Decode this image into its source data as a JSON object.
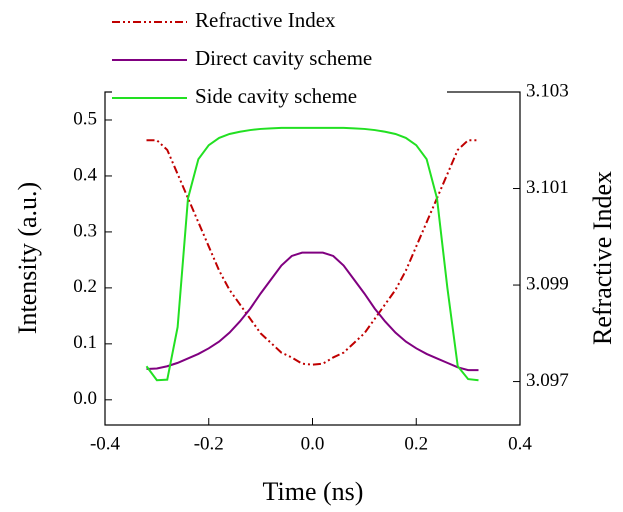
{
  "chart_data": {
    "type": "line",
    "xlabel": "Time (ns)",
    "ylabel": "Intensity (a.u.)",
    "y2label": "Refractive Index",
    "x": [
      -0.32,
      -0.3,
      -0.28,
      -0.26,
      -0.24,
      -0.22,
      -0.2,
      -0.18,
      -0.16,
      -0.14,
      -0.12,
      -0.1,
      -0.08,
      -0.06,
      -0.04,
      -0.02,
      0,
      0.02,
      0.04,
      0.06,
      0.08,
      0.1,
      0.12,
      0.14,
      0.16,
      0.18,
      0.2,
      0.22,
      0.24,
      0.26,
      0.28,
      0.3,
      0.32
    ],
    "series": [
      {
        "name": "Refractive Index",
        "color": "#c00000",
        "dash": "dash-dot-dot",
        "axis": "y2",
        "values": [
          3.102,
          3.102,
          3.1018,
          3.1013,
          3.1008,
          3.1003,
          3.0998,
          3.0993,
          3.0989,
          3.0986,
          3.0983,
          3.098,
          3.0978,
          3.0976,
          3.0975,
          3.09737,
          3.09735,
          3.09737,
          3.0975,
          3.0976,
          3.0978,
          3.098,
          3.0983,
          3.0986,
          3.0989,
          3.0993,
          3.0998,
          3.1003,
          3.1008,
          3.1013,
          3.1018,
          3.102,
          3.102
        ]
      },
      {
        "name": "Direct cavity scheme",
        "color": "#800080",
        "dash": "solid",
        "values": [
          0.055,
          0.056,
          0.06,
          0.066,
          0.074,
          0.082,
          0.092,
          0.104,
          0.12,
          0.14,
          0.163,
          0.19,
          0.215,
          0.24,
          0.257,
          0.263,
          0.263,
          0.263,
          0.257,
          0.24,
          0.215,
          0.19,
          0.163,
          0.14,
          0.12,
          0.104,
          0.092,
          0.082,
          0.074,
          0.066,
          0.058,
          0.053,
          0.053
        ]
      },
      {
        "name": "Side cavity scheme",
        "color": "#22e022",
        "dash": "solid",
        "values": [
          0.06,
          0.035,
          0.036,
          0.13,
          0.36,
          0.43,
          0.455,
          0.468,
          0.475,
          0.479,
          0.482,
          0.484,
          0.485,
          0.486,
          0.486,
          0.486,
          0.486,
          0.486,
          0.486,
          0.486,
          0.485,
          0.484,
          0.482,
          0.479,
          0.475,
          0.468,
          0.455,
          0.43,
          0.36,
          0.2,
          0.06,
          0.037,
          0.035
        ]
      }
    ],
    "xlim": [
      -0.4,
      0.4
    ],
    "xticks": [
      -0.4,
      -0.2,
      {
        "value": 0,
        "label": "0.0"
      },
      0.2,
      0.4
    ],
    "ylim": [
      -0.045,
      0.55
    ],
    "yticks": [
      {
        "value": 0,
        "label": "0.0"
      },
      0.1,
      0.2,
      0.3,
      0.4,
      0.5
    ],
    "y2lim": [
      3.0961,
      3.103
    ],
    "y2ticks": [
      3.097,
      3.099,
      3.101,
      3.103
    ],
    "legend": "upper-left"
  }
}
